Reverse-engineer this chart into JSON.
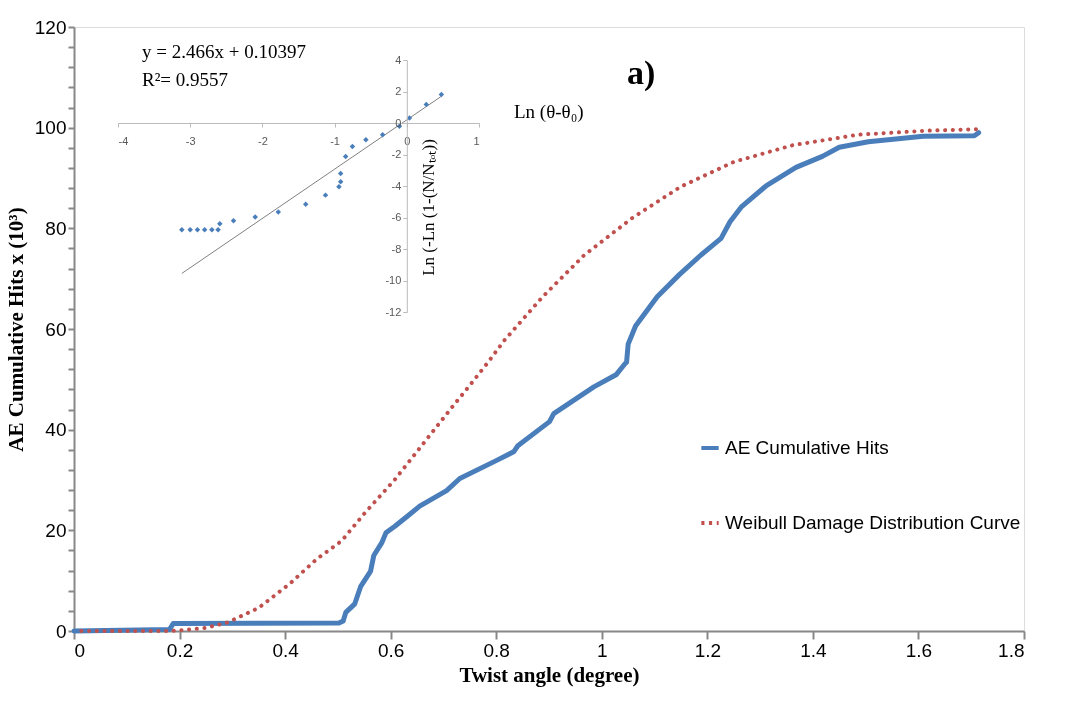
{
  "chart_data": [
    {
      "type": "line",
      "xlabel": "Twist angle (degree)",
      "ylabel": "AE Cumulative Hits x (10³)",
      "annotations": [
        "a)"
      ],
      "xlim": [
        0,
        1.8
      ],
      "xticks": [
        0,
        0.2,
        0.4,
        0.6,
        0.8,
        1,
        1.2,
        1.4,
        1.6,
        1.8
      ],
      "ylim": [
        0,
        120
      ],
      "yticks": [
        0,
        {
          "value": 4,
          "label": null
        },
        {
          "value": 8,
          "label": null
        },
        {
          "value": 12,
          "label": null
        },
        {
          "value": 16,
          "label": null
        },
        20,
        {
          "value": 24,
          "label": null
        },
        {
          "value": 28,
          "label": null
        },
        {
          "value": 32,
          "label": null
        },
        {
          "value": 36,
          "label": null
        },
        40,
        {
          "value": 44,
          "label": null
        },
        {
          "value": 48,
          "label": null
        },
        {
          "value": 52,
          "label": null
        },
        {
          "value": 56,
          "label": null
        },
        60,
        {
          "value": 64,
          "label": null
        },
        {
          "value": 68,
          "label": null
        },
        {
          "value": 72,
          "label": null
        },
        {
          "value": 76,
          "label": null
        },
        80,
        {
          "value": 84,
          "label": null
        },
        {
          "value": 88,
          "label": null
        },
        {
          "value": 92,
          "label": null
        },
        {
          "value": 96,
          "label": null
        },
        100,
        {
          "value": 104,
          "label": null
        },
        {
          "value": 108,
          "label": null
        },
        {
          "value": 112,
          "label": null
        },
        {
          "value": 116,
          "label": null
        },
        120
      ],
      "grid": false,
      "legend": "right",
      "marker": "none",
      "series": [
        {
          "name": "AE Cumulative Hits",
          "color": "#4a7ebb",
          "line_style": "solid",
          "x": [
            0,
            0.181,
            0.188,
            0.502,
            0.51,
            0.515,
            0.532,
            0.543,
            0.562,
            0.568,
            0.583,
            0.591,
            0.608,
            0.634,
            0.655,
            0.706,
            0.731,
            0.799,
            0.833,
            0.841,
            0.901,
            0.909,
            0.985,
            1.027,
            1.044,
            1.047,
            1.05,
            1.064,
            1.105,
            1.147,
            1.188,
            1.226,
            1.243,
            1.264,
            1.312,
            1.368,
            1.418,
            1.45,
            1.505,
            1.609,
            1.706,
            1.714
          ],
          "values": [
            0,
            0.3,
            1.5,
            1.6,
            2,
            3.7,
            5.4,
            8.8,
            11.9,
            15,
            17.5,
            19.5,
            20.8,
            23,
            24.8,
            27.9,
            30.3,
            33.8,
            35.6,
            36.8,
            41.6,
            43.2,
            48.5,
            50.9,
            53.1,
            53.4,
            57,
            60.6,
            66.4,
            70.8,
            74.7,
            78,
            81.3,
            84.2,
            88.5,
            92.1,
            94.3,
            96.1,
            97.2,
            98.3,
            98.4,
            99
          ]
        },
        {
          "name": "Weibull Damage Distribution Curve",
          "color": "#c0504d",
          "line_style": "dotted",
          "x": [
            0,
            0.186,
            0.249,
            0.291,
            0.35,
            0.41,
            0.46,
            0.507,
            0.549,
            0.608,
            0.663,
            0.718,
            0.746,
            0.786,
            0.815,
            0.888,
            0.967,
            1.057,
            1.15,
            1.25,
            1.361,
            1.485,
            1.616,
            1.709
          ],
          "values": [
            0,
            0,
            0.6,
            1.7,
            4.6,
            9.5,
            14.3,
            17.9,
            23.2,
            30.1,
            37.4,
            44.7,
            48.3,
            53.6,
            57.7,
            66.4,
            74.7,
            82,
            88.3,
            93.2,
            96.5,
            98.6,
            99.4,
            99.7
          ]
        }
      ]
    },
    {
      "type": "scatter",
      "xlabel": "Ln (θ-θ₀)",
      "ylabel": "Ln (-Ln (1-(N/Nₜₒₜ))",
      "annotations": [
        "y = 2.466x + 0.10397",
        "R²= 0.9557"
      ],
      "xlim": [
        -4,
        1
      ],
      "xticks": [
        -4,
        -3,
        -2,
        -1,
        0,
        1
      ],
      "ylim": [
        -12,
        4
      ],
      "yticks": [
        -12,
        -10,
        -8,
        -6,
        -4,
        -2,
        0,
        2,
        4
      ],
      "grid": false,
      "legend": false,
      "series": [
        {
          "type": "scatter",
          "color": "#4a7ebb",
          "marker": "diamond",
          "x": [
            -3.116,
            -3.0,
            -2.9,
            -2.8,
            -2.7,
            -2.614,
            -2.59,
            -2.4,
            -2.1,
            -1.78,
            -1.4,
            -1.126,
            -0.94,
            -0.916,
            -0.916,
            -0.847,
            -0.753,
            -0.567,
            -0.335,
            -0.102,
            0.037,
            0.27,
            0.479
          ],
          "values": [
            -6.78,
            -6.78,
            -6.78,
            -6.78,
            -6.78,
            -6.78,
            -6.4,
            -6.2,
            -5.97,
            -5.65,
            -5.16,
            -4.58,
            -4.05,
            -3.73,
            -3.2,
            -2.13,
            -1.49,
            -1.07,
            -0.75,
            -0.21,
            0.32,
            1.17,
            1.81
          ]
        },
        {
          "type": "line",
          "color": "#808080",
          "line_style": "solid",
          "x": [
            -3.116,
            0.48
          ],
          "values": [
            -9.55,
            1.7
          ]
        }
      ]
    }
  ]
}
